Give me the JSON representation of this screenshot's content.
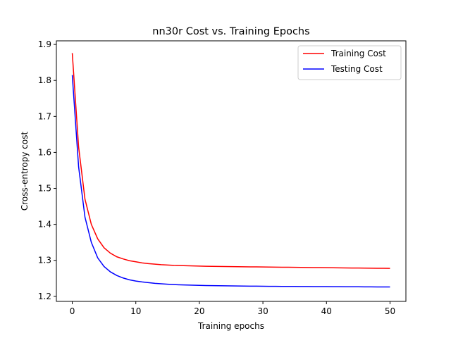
{
  "chart_data": {
    "type": "line",
    "title": "nn30r Cost vs. Training Epochs",
    "xlabel": "Training epochs",
    "ylabel": "Cross-entropy cost",
    "xlim": [
      -2.5,
      52.5
    ],
    "ylim": [
      1.186,
      1.91
    ],
    "xticks": [
      0,
      10,
      20,
      30,
      40,
      50
    ],
    "yticks": [
      1.2,
      1.3,
      1.4,
      1.5,
      1.6,
      1.7,
      1.8,
      1.9
    ],
    "grid": false,
    "legend_position": "top-right",
    "x": [
      0,
      1,
      2,
      3,
      4,
      5,
      6,
      7,
      8,
      9,
      10,
      11,
      12,
      13,
      14,
      15,
      16,
      17,
      18,
      19,
      20,
      21,
      22,
      23,
      24,
      25,
      26,
      27,
      28,
      29,
      30,
      31,
      32,
      33,
      34,
      35,
      36,
      37,
      38,
      39,
      40,
      41,
      42,
      43,
      44,
      45,
      46,
      47,
      48,
      49,
      50
    ],
    "series": [
      {
        "name": "Training Cost",
        "color": "#ff0000",
        "values": [
          1.876,
          1.615,
          1.47,
          1.4,
          1.36,
          1.335,
          1.32,
          1.31,
          1.304,
          1.299,
          1.296,
          1.293,
          1.291,
          1.2895,
          1.288,
          1.287,
          1.286,
          1.2855,
          1.285,
          1.2845,
          1.284,
          1.2837,
          1.2834,
          1.2831,
          1.2828,
          1.2826,
          1.2824,
          1.2822,
          1.282,
          1.2818,
          1.2816,
          1.2814,
          1.2812,
          1.281,
          1.2808,
          1.2806,
          1.2804,
          1.2802,
          1.28,
          1.2798,
          1.2796,
          1.2794,
          1.2792,
          1.279,
          1.2788,
          1.2786,
          1.2784,
          1.2782,
          1.278,
          1.2779,
          1.2778
        ]
      },
      {
        "name": "Testing Cost",
        "color": "#0000ff",
        "values": [
          1.815,
          1.56,
          1.42,
          1.35,
          1.307,
          1.283,
          1.268,
          1.258,
          1.251,
          1.246,
          1.2425,
          1.24,
          1.238,
          1.2362,
          1.2348,
          1.2337,
          1.2328,
          1.232,
          1.2314,
          1.2309,
          1.2305,
          1.2301,
          1.2298,
          1.2295,
          1.2292,
          1.229,
          1.2288,
          1.2286,
          1.2284,
          1.2282,
          1.228,
          1.2279,
          1.2278,
          1.2277,
          1.2276,
          1.2275,
          1.2274,
          1.2273,
          1.2272,
          1.2271,
          1.227,
          1.2269,
          1.2268,
          1.2267,
          1.2266,
          1.2265,
          1.2264,
          1.2263,
          1.2262,
          1.2261,
          1.226
        ]
      }
    ]
  }
}
